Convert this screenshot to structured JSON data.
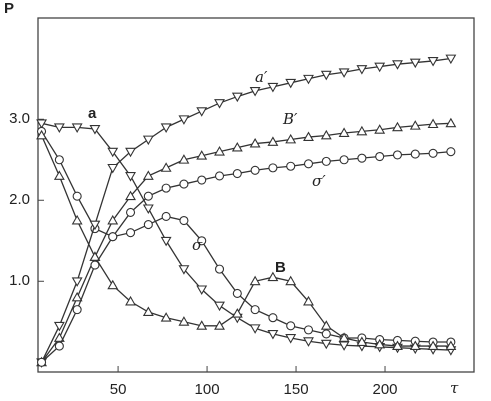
{
  "chart_data": {
    "type": "line",
    "y_label": "P",
    "x_label": "τ",
    "x": [
      7,
      17,
      27,
      37,
      47,
      57,
      67,
      77,
      87,
      97,
      107,
      117,
      127,
      137,
      147,
      157,
      167,
      177,
      187,
      197,
      207,
      217,
      227,
      237
    ],
    "series": [
      {
        "name": "a",
        "color": "#333",
        "marker": "triangle-down",
        "values": [
          2.95,
          2.9,
          2.9,
          2.88,
          2.6,
          2.3,
          1.9,
          1.5,
          1.15,
          0.9,
          0.7,
          0.55,
          0.42,
          0.35,
          0.3,
          0.26,
          0.23,
          0.21,
          0.2,
          0.19,
          0.18,
          0.17,
          0.16,
          0.15
        ]
      },
      {
        "name": "σ",
        "color": "#333",
        "marker": "circle",
        "values": [
          2.85,
          2.5,
          2.05,
          1.65,
          1.55,
          1.6,
          1.7,
          1.8,
          1.75,
          1.5,
          1.15,
          0.85,
          0.65,
          0.55,
          0.45,
          0.4,
          0.35,
          0.3,
          0.3,
          0.28,
          0.27,
          0.26,
          0.25,
          0.25
        ]
      },
      {
        "name": "B",
        "color": "#333",
        "marker": "triangle-up",
        "values": [
          2.8,
          2.3,
          1.75,
          1.3,
          0.95,
          0.75,
          0.62,
          0.55,
          0.5,
          0.45,
          0.45,
          0.6,
          1.0,
          1.05,
          1.0,
          0.75,
          0.45,
          0.3,
          0.25,
          0.22,
          0.2,
          0.2,
          0.2,
          0.2
        ]
      },
      {
        "name": "a′",
        "color": "#333",
        "marker": "triangle-down",
        "values": [
          0.0,
          0.45,
          1.0,
          1.7,
          2.4,
          2.6,
          2.75,
          2.9,
          3.0,
          3.1,
          3.2,
          3.28,
          3.35,
          3.4,
          3.45,
          3.5,
          3.55,
          3.58,
          3.62,
          3.65,
          3.68,
          3.7,
          3.72,
          3.75
        ]
      },
      {
        "name": "B′",
        "color": "#333",
        "marker": "triangle-up",
        "values": [
          0.0,
          0.3,
          0.8,
          1.3,
          1.75,
          2.05,
          2.3,
          2.4,
          2.5,
          2.55,
          2.6,
          2.65,
          2.7,
          2.72,
          2.75,
          2.78,
          2.8,
          2.83,
          2.85,
          2.87,
          2.9,
          2.92,
          2.94,
          2.95
        ]
      },
      {
        "name": "σ′",
        "color": "#333",
        "marker": "circle",
        "values": [
          0.0,
          0.2,
          0.65,
          1.2,
          1.55,
          1.85,
          2.05,
          2.15,
          2.2,
          2.25,
          2.3,
          2.33,
          2.37,
          2.4,
          2.42,
          2.45,
          2.48,
          2.5,
          2.52,
          2.54,
          2.56,
          2.57,
          2.58,
          2.6
        ]
      }
    ],
    "xlim": [
      5,
      250
    ],
    "ylim": [
      -0.12,
      4.25
    ],
    "xticks": [
      50,
      100,
      150,
      200
    ],
    "yticks": [
      {
        "value": 1,
        "label": "1.0"
      },
      {
        "value": 2,
        "label": "2.0"
      },
      {
        "value": 3,
        "label": "3.0"
      }
    ]
  }
}
